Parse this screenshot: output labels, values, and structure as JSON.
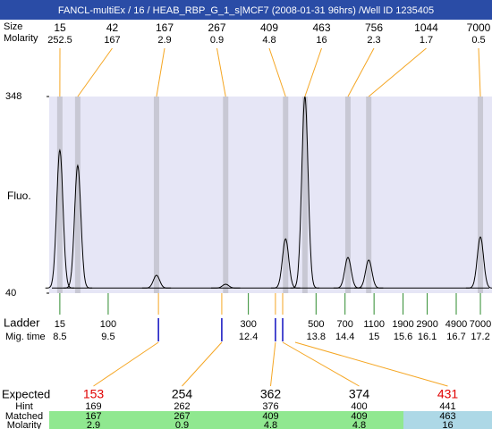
{
  "header": {
    "title": "FANCL-multiEx / 16 / HEAB_RBP_G_1_s|MCF7 (2008-01-31 96hrs) /Well ID 1235405"
  },
  "chart_data": {
    "type": "electropherogram",
    "ylabel": "Fluo.",
    "ylim": [
      40,
      348
    ],
    "yticks": [
      40,
      348
    ],
    "xlim": [
      8.28,
      17.44
    ],
    "baseline": 48,
    "plot_color": "#e6e6f6",
    "band_color": "#c8c8d4",
    "trace_color": "#000000",
    "peaks": {
      "row_labels": [
        "Size",
        "Molarity"
      ],
      "mig_time": [
        8.5,
        8.87,
        10.5,
        11.93,
        13.17,
        13.57,
        14.46,
        14.89,
        17.2
      ],
      "size": [
        15,
        42,
        167,
        267,
        409,
        463,
        756,
        1044,
        7000
      ],
      "molarity": [
        252.5,
        167,
        2.9,
        0.9,
        4.8,
        16,
        2.3,
        1.7,
        0.5
      ],
      "height": [
        264,
        240,
        68,
        54,
        125,
        348,
        96,
        92,
        128
      ],
      "line_color": "#f5a623"
    },
    "ladder": {
      "label": "Ladder",
      "time_label": "Mig. time",
      "size": [
        15,
        100,
        300,
        500,
        700,
        1100,
        1900,
        2900,
        4900,
        7000
      ],
      "mig_time": [
        8.5,
        9.5,
        12.4,
        13.8,
        14.4,
        15,
        15.6,
        16.1,
        16.7,
        17.2
      ],
      "color": "#2e8b2e"
    },
    "markers": {
      "mig_time": [
        10.54,
        11.85,
        12.96,
        13.11
      ],
      "color": "#1010c0"
    },
    "expected": {
      "label": "Expected",
      "values": [
        153,
        254,
        362,
        374,
        431
      ],
      "colors": [
        "#e00000",
        "#000000",
        "#000000",
        "#000000",
        "#e00000"
      ],
      "hint_label": "Hint",
      "hint": [
        169,
        262,
        376,
        400,
        441
      ],
      "matched_label": "Matched",
      "matched": [
        167,
        267,
        409,
        409,
        463
      ],
      "molarity_label": "Molarity",
      "molarity": [
        2.9,
        0.9,
        4.8,
        4.8,
        16
      ],
      "row_colors": [
        "#90e890",
        "#90e890",
        "#90e890",
        "#90e890",
        "#add8e6"
      ]
    }
  }
}
